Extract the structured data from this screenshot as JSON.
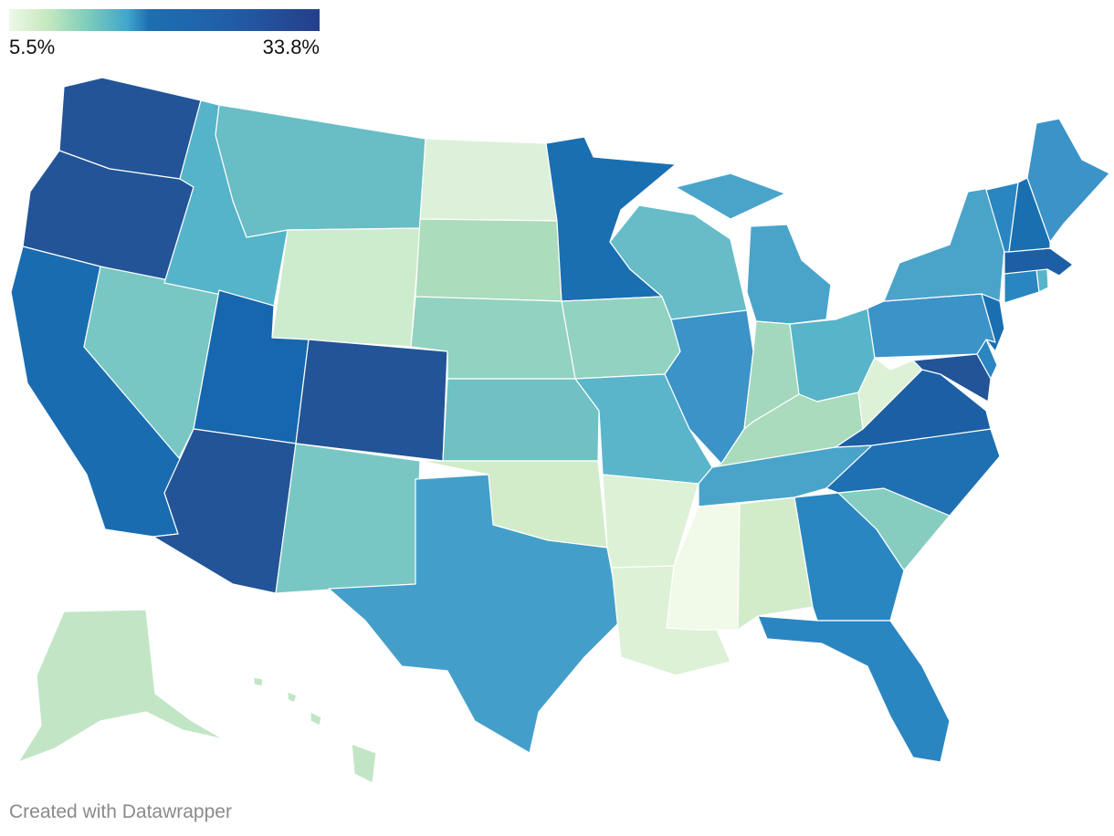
{
  "legend": {
    "min_label": "5.5%",
    "max_label": "33.8%",
    "min_value": 5.5,
    "max_value": 33.8,
    "colors": [
      "#eef8e6",
      "#c7e9c0",
      "#7fcdbb",
      "#41a7cc",
      "#1d6fb0",
      "#225ea8",
      "#253f8a"
    ]
  },
  "credit": "Created with Datawrapper",
  "regions": [
    {
      "state": "Washington",
      "color": "#225497"
    },
    {
      "state": "Oregon",
      "color": "#225497"
    },
    {
      "state": "California",
      "color": "#1a6cb0"
    },
    {
      "state": "Nevada",
      "color": "#79c7c4"
    },
    {
      "state": "Idaho",
      "color": "#55b4c9"
    },
    {
      "state": "Montana",
      "color": "#69bdc5"
    },
    {
      "state": "Wyoming",
      "color": "#cdebcd"
    },
    {
      "state": "Utah",
      "color": "#1767ae"
    },
    {
      "state": "Colorado",
      "color": "#225497"
    },
    {
      "state": "Arizona",
      "color": "#225497"
    },
    {
      "state": "New Mexico",
      "color": "#79c7c4"
    },
    {
      "state": "North Dakota",
      "color": "#ddf1da"
    },
    {
      "state": "South Dakota",
      "color": "#abdcbb"
    },
    {
      "state": "Nebraska",
      "color": "#92d2c0"
    },
    {
      "state": "Kansas",
      "color": "#6fc1c4"
    },
    {
      "state": "Oklahoma",
      "color": "#d2ecca"
    },
    {
      "state": "Texas",
      "color": "#439fca"
    },
    {
      "state": "Minnesota",
      "color": "#1a6fb0"
    },
    {
      "state": "Iowa",
      "color": "#92d2c0"
    },
    {
      "state": "Missouri",
      "color": "#5ab5ca"
    },
    {
      "state": "Arkansas",
      "color": "#ddf1d6"
    },
    {
      "state": "Louisiana",
      "color": "#dcf1d5"
    },
    {
      "state": "Wisconsin",
      "color": "#67bcc8"
    },
    {
      "state": "Illinois",
      "color": "#3b93c8"
    },
    {
      "state": "Michigan",
      "color": "#4aa4ca"
    },
    {
      "state": "Indiana",
      "color": "#a4d8bc"
    },
    {
      "state": "Ohio",
      "color": "#58b4c9"
    },
    {
      "state": "Kentucky",
      "color": "#a9dbbc"
    },
    {
      "state": "Tennessee",
      "color": "#4aa4ca"
    },
    {
      "state": "Mississippi",
      "color": "#f1f9e8"
    },
    {
      "state": "Alabama",
      "color": "#d2ecca"
    },
    {
      "state": "Georgia",
      "color": "#2a86c0"
    },
    {
      "state": "Florida",
      "color": "#2a86c0"
    },
    {
      "state": "South Carolina",
      "color": "#86cdc0"
    },
    {
      "state": "North Carolina",
      "color": "#1e70b2"
    },
    {
      "state": "Virginia",
      "color": "#1c5fa4"
    },
    {
      "state": "West Virginia",
      "color": "#ddf1d6"
    },
    {
      "state": "Pennsylvania",
      "color": "#3b93c8"
    },
    {
      "state": "New York",
      "color": "#4aa4ca"
    },
    {
      "state": "Maryland",
      "color": "#225497"
    },
    {
      "state": "Delaware",
      "color": "#2a86c0"
    },
    {
      "state": "New Jersey",
      "color": "#1a6fb0"
    },
    {
      "state": "Connecticut",
      "color": "#2a86c0"
    },
    {
      "state": "Rhode Island",
      "color": "#58b4c9"
    },
    {
      "state": "Massachusetts",
      "color": "#1c5fa4"
    },
    {
      "state": "Vermont",
      "color": "#2a86c0"
    },
    {
      "state": "New Hampshire",
      "color": "#1a6fb0"
    },
    {
      "state": "Maine",
      "color": "#3b93c8"
    },
    {
      "state": "Alaska",
      "color": "#c2e6c5"
    },
    {
      "state": "Hawaii",
      "color": "#c2e6c5"
    }
  ]
}
